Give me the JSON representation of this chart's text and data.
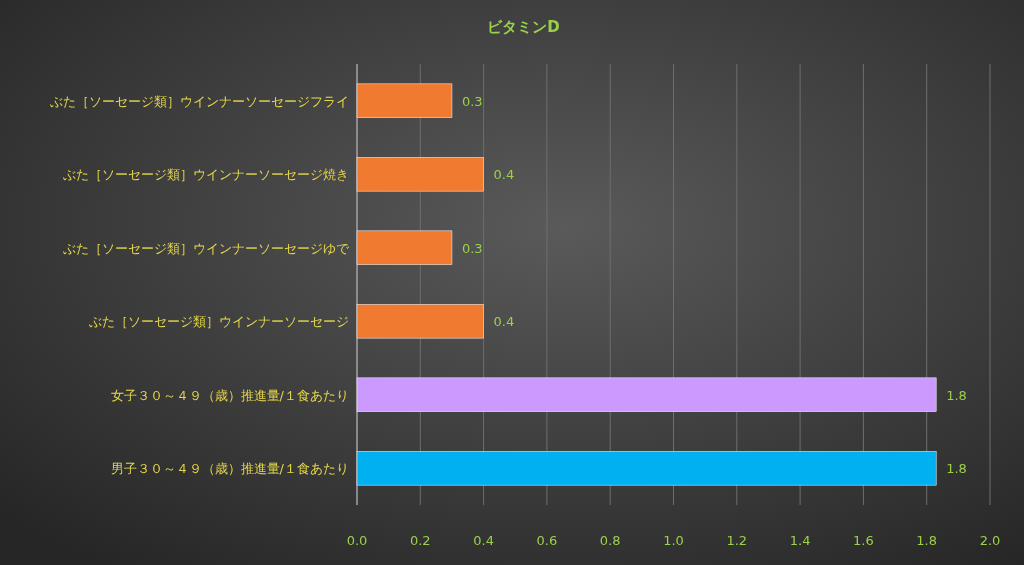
{
  "chart_data": {
    "type": "bar",
    "orientation": "horizontal",
    "title": "ビタミンD",
    "categories": [
      "ぶた［ソーセージ類］ウインナーソーセージフライ",
      "ぶた［ソーセージ類］ウインナーソーセージ焼き",
      "ぶた［ソーセージ類］ウインナーソーセージゆで",
      "ぶた［ソーセージ類］ウインナーソーセージ",
      "女子３０～４９（歳）推進量/１食あたり",
      "男子３０～４９（歳）推進量/１食あたり"
    ],
    "values": [
      0.3,
      0.4,
      0.3,
      0.4,
      1.83,
      1.83
    ],
    "value_labels": [
      "0.3",
      "0.4",
      "0.3",
      "0.4",
      "1.8",
      "1.8"
    ],
    "colors": [
      "#f07a30",
      "#f07a30",
      "#f07a30",
      "#f07a30",
      "#cc99ff",
      "#00b0f0"
    ],
    "xlim": [
      0,
      2
    ],
    "xticks": [
      {
        "value": 0,
        "label": "0.0"
      },
      {
        "value": 0.2,
        "label": "0.2"
      },
      {
        "value": 0.4,
        "label": "0.4"
      },
      {
        "value": 0.6,
        "label": "0.6"
      },
      {
        "value": 0.8,
        "label": "0.8"
      },
      {
        "value": 1,
        "label": "1.0"
      },
      {
        "value": 1.2,
        "label": "1.2"
      },
      {
        "value": 1.4,
        "label": "1.4"
      },
      {
        "value": 1.6,
        "label": "1.6"
      },
      {
        "value": 1.8,
        "label": "1.8"
      },
      {
        "value": 2,
        "label": "2.0"
      }
    ],
    "grid": "x"
  }
}
